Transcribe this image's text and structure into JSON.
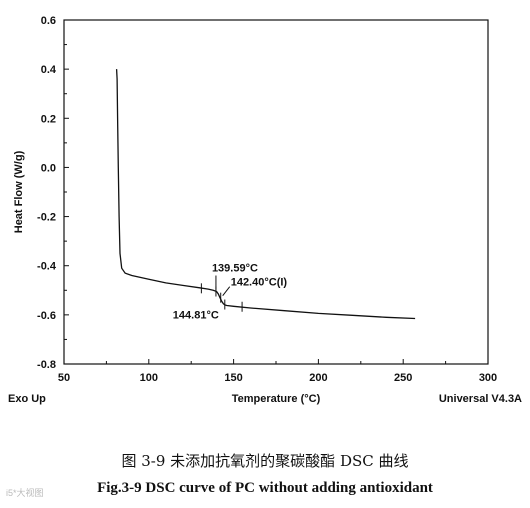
{
  "chart_data": {
    "type": "line",
    "title": "",
    "xlabel": "Temperature (°C)",
    "ylabel": "Heat Flow (W/g)",
    "xlim": [
      50,
      300
    ],
    "ylim": [
      -0.8,
      0.6
    ],
    "xticks": [
      50,
      100,
      150,
      200,
      250,
      300
    ],
    "yticks": [
      0.6,
      0.4,
      0.2,
      0.0,
      -0.2,
      -0.4,
      -0.6,
      -0.8
    ],
    "ytick_labels": [
      "0.6",
      "0.4",
      "0.2",
      "0.0",
      "-0.2",
      "-0.4",
      "-0.6",
      "-0.8"
    ],
    "bottom_left_label": "Exo Up",
    "bottom_right_label": "Universal V4.3A",
    "series": [
      {
        "x": [
          81,
          81.3,
          81.6,
          82,
          82.5,
          83,
          84,
          86,
          90,
          100,
          110,
          120,
          130,
          135,
          138,
          140,
          141,
          142,
          143,
          144,
          145,
          146,
          150,
          160,
          180,
          200,
          220,
          240,
          257
        ],
        "y": [
          0.4,
          0.36,
          0.2,
          0.0,
          -0.2,
          -0.35,
          -0.41,
          -0.43,
          -0.44,
          -0.455,
          -0.47,
          -0.48,
          -0.49,
          -0.495,
          -0.5,
          -0.505,
          -0.515,
          -0.53,
          -0.545,
          -0.555,
          -0.56,
          -0.562,
          -0.565,
          -0.572,
          -0.583,
          -0.594,
          -0.602,
          -0.61,
          -0.615
        ]
      }
    ],
    "annotations": [
      {
        "text": "139.59°C",
        "x": 139.59,
        "y": -0.505
      },
      {
        "text": "142.40°C(I)",
        "x": 142.4,
        "y": -0.53
      },
      {
        "text": "144.81°C",
        "x": 144.81,
        "y": -0.558
      }
    ],
    "markers": [
      {
        "x": 131,
        "y": -0.492
      },
      {
        "x": 155,
        "y": -0.567
      }
    ]
  },
  "caption": {
    "cn": "图 3-9  未添加抗氧剂的聚碳酸酯 DSC 曲线",
    "en": "Fig.3-9 DSC curve of PC without adding antioxidant"
  },
  "watermark": "i5*大视图"
}
